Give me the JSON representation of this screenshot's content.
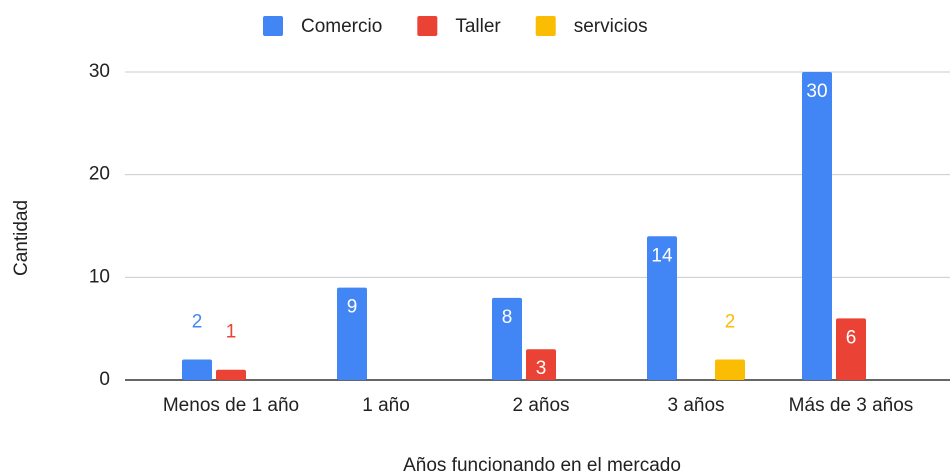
{
  "chart_data": {
    "type": "bar",
    "x_label": "Años funcionando en el mercado",
    "y_label": "Cantidad",
    "categories": [
      "Menos de 1 año",
      "1 año",
      "2 años",
      "3 años",
      "Más de 3 años"
    ],
    "series": [
      {
        "name": "Comercio",
        "color": "#4285f4",
        "values": [
          2,
          9,
          8,
          14,
          30
        ]
      },
      {
        "name": "Taller",
        "color": "#ea4335",
        "values": [
          1,
          null,
          3,
          null,
          6
        ]
      },
      {
        "name": "servicios",
        "color": "#fbbc04",
        "values": [
          null,
          null,
          null,
          2,
          null
        ]
      }
    ],
    "ylim": [
      0,
      30
    ],
    "yticks": [
      0,
      10,
      20,
      30
    ],
    "grid": true,
    "legend": "top"
  }
}
